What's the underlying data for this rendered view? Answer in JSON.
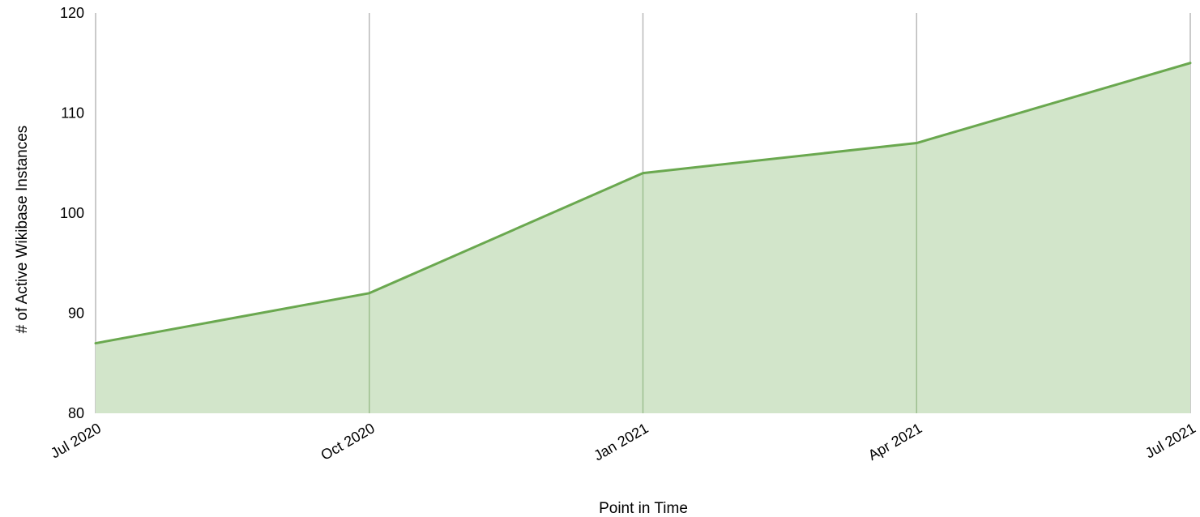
{
  "chart_data": {
    "type": "area",
    "x": [
      "2020-07-01",
      "2020-10-01",
      "2021-01-01",
      "2021-04-01",
      "2021-07-01"
    ],
    "x_tick_labels": [
      "Jul 2020",
      "Oct 2020",
      "Jan 2021",
      "Apr 2021",
      "Jul 2021"
    ],
    "series": [
      {
        "values": [
          87,
          92,
          104,
          107,
          115
        ]
      }
    ],
    "xlabel": "Point in Time",
    "ylabel": "# of Active Wikibase Instances",
    "ylim": [
      80,
      120
    ],
    "y_ticks": [
      80,
      90,
      100,
      110,
      120
    ],
    "grid": "vertical",
    "legend": "none",
    "colors": {
      "line": "#6aa84f",
      "fill": "#d2e5ca",
      "grid": "#b9b9b9"
    }
  }
}
